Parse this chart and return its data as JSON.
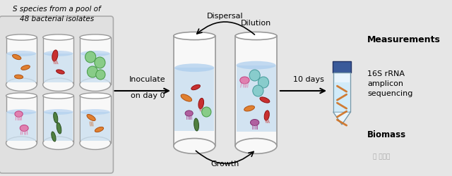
{
  "bg_color": "#e6e6e6",
  "title_line1": "S species from a pool of",
  "title_line2": "48 bacterial isolates",
  "dispersal_text": "Dispersal",
  "dilution_text": "Dilution",
  "inoculate_line1": "Inoculate",
  "inoculate_line2": "on day 0",
  "growth_text": "Growth",
  "days_text": "10 days",
  "measurements_text": "Measurements",
  "seq_text": "16S rRNA\namplicon\nsequencing",
  "biomass_text": "Biomass",
  "watermark": "量子位",
  "flask_face": "#f8f8f8",
  "flask_water": "#cce0f0",
  "flask_edge": "#999999",
  "panel_face": "#e0e0e0",
  "panel_edge": "#aaaaaa",
  "tube_cap": "#3a5a9a",
  "tube_body": "#e8f4fc",
  "tube_edge": "#7799aa",
  "dna_color": "#d07020",
  "colors": {
    "orange": "#e08030",
    "red": "#c03030",
    "green_blob": "#88cc88",
    "purple": "#b060a0",
    "dark_green": "#508040",
    "pink": "#e080a0",
    "teal": "#60b0a0"
  }
}
